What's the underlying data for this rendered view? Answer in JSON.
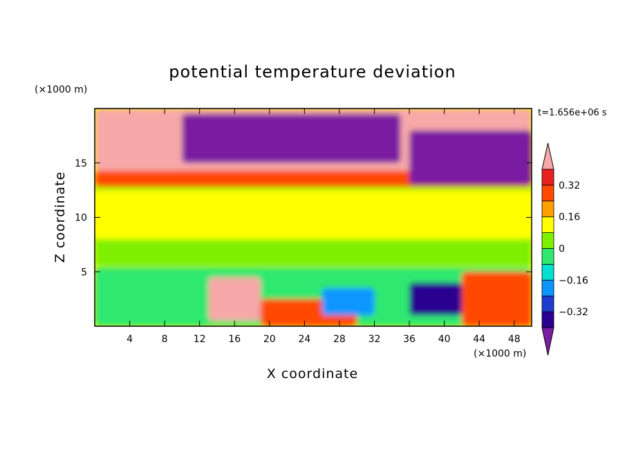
{
  "chart_data": {
    "type": "heatmap",
    "title": "potential temperature deviation",
    "xlabel": "X coordinate",
    "ylabel": "Z coordinate",
    "x_unit": "(×1000 m)",
    "y_unit": "(×1000 m)",
    "time_label": "t=1.656e+06 s",
    "xlim": [
      0,
      50
    ],
    "ylim": [
      0,
      20
    ],
    "x_ticks": [
      4,
      8,
      12,
      16,
      20,
      24,
      28,
      32,
      36,
      40,
      44,
      48
    ],
    "y_ticks": [
      5,
      10,
      15
    ],
    "colorbar": {
      "levels": [
        -0.4,
        -0.32,
        -0.24,
        -0.16,
        -0.08,
        0,
        0.08,
        0.16,
        0.24,
        0.32,
        0.4
      ],
      "tick_labels": [
        "0.32",
        "0.16",
        "0",
        "−0.16",
        "−0.32"
      ],
      "tick_values": [
        0.32,
        0.16,
        0,
        -0.16,
        -0.32
      ],
      "colors": [
        "#7a1fa2",
        "#2a0090",
        "#1e3cd0",
        "#0a96ff",
        "#00e0d0",
        "#2ee870",
        "#7ef000",
        "#ffff00",
        "#ffa000",
        "#ff4a00",
        "#e82020",
        "#f7a8a8"
      ]
    },
    "regions": [
      {
        "x": [
          0,
          50
        ],
        "z": [
          5.5,
          14
        ],
        "value": 0.05
      },
      {
        "x": [
          0,
          50
        ],
        "z": [
          8,
          12.5
        ],
        "value": 0.1
      },
      {
        "x": [
          0,
          50
        ],
        "z": [
          12.8,
          14.3
        ],
        "value": 0.3
      },
      {
        "x": [
          0,
          50
        ],
        "z": [
          14.3,
          20
        ],
        "value": 0.45
      },
      {
        "x": [
          10,
          35
        ],
        "z": [
          15,
          19.5
        ],
        "value": -0.45
      },
      {
        "x": [
          36,
          50
        ],
        "z": [
          13,
          18
        ],
        "value": -0.45
      },
      {
        "x": [
          0,
          50
        ],
        "z": [
          0,
          5.4
        ],
        "value": -0.05
      },
      {
        "x": [
          13,
          19
        ],
        "z": [
          0.5,
          4.5
        ],
        "value": 0.45
      },
      {
        "x": [
          19,
          30
        ],
        "z": [
          0,
          2.5
        ],
        "value": 0.25
      },
      {
        "x": [
          26,
          32
        ],
        "z": [
          1,
          3.5
        ],
        "value": -0.2
      },
      {
        "x": [
          36,
          42
        ],
        "z": [
          1,
          4
        ],
        "value": -0.4
      },
      {
        "x": [
          42,
          50
        ],
        "z": [
          0,
          5
        ],
        "value": 0.3
      }
    ]
  }
}
